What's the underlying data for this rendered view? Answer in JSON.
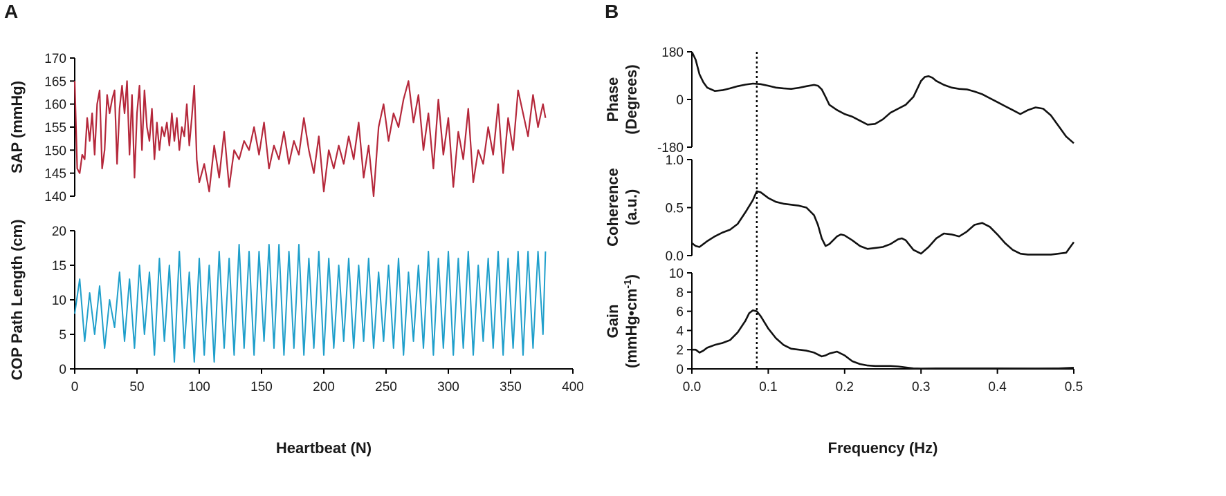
{
  "panels": {
    "a": "A",
    "b": "B"
  },
  "colors": {
    "sap": "#b5283b",
    "cop": "#1f9fcb",
    "spectral": "#111111"
  },
  "chart_data": [
    {
      "id": "sap",
      "type": "line",
      "ylabel": "SAP (mmHg)",
      "ylim": [
        140,
        170
      ],
      "yticks": [
        140,
        145,
        150,
        155,
        160,
        165,
        170
      ],
      "xlim": [
        0,
        400
      ],
      "series": [
        {
          "x": [
            0,
            2,
            4,
            6,
            8,
            10,
            12,
            14,
            16,
            18,
            20,
            22,
            24,
            26,
            28,
            30,
            32,
            34,
            36,
            38,
            40,
            42,
            44,
            46,
            48,
            50,
            52,
            54,
            56,
            58,
            60,
            62,
            64,
            66,
            68,
            70,
            72,
            74,
            76,
            78,
            80,
            82,
            84,
            86,
            88,
            90,
            92,
            94,
            96,
            98,
            100,
            104,
            108,
            112,
            116,
            120,
            124,
            128,
            132,
            136,
            140,
            144,
            148,
            152,
            156,
            160,
            164,
            168,
            172,
            176,
            180,
            184,
            188,
            192,
            196,
            200,
            204,
            208,
            212,
            216,
            220,
            224,
            228,
            232,
            236,
            240,
            244,
            248,
            252,
            256,
            260,
            264,
            268,
            272,
            276,
            280,
            284,
            288,
            292,
            296,
            300,
            304,
            308,
            312,
            316,
            320,
            324,
            328,
            332,
            336,
            340,
            344,
            348,
            352,
            356,
            360,
            364,
            368,
            372,
            376,
            378
          ],
          "y": [
            165,
            146,
            145,
            149,
            148,
            157,
            152,
            158,
            149,
            160,
            163,
            146,
            150,
            162,
            158,
            161,
            163,
            147,
            159,
            164,
            158,
            165,
            149,
            162,
            144,
            158,
            164,
            150,
            163,
            155,
            152,
            159,
            148,
            156,
            150,
            155,
            153,
            156,
            151,
            158,
            152,
            157,
            150,
            155,
            153,
            160,
            151,
            157,
            164,
            148,
            143,
            147,
            141,
            151,
            144,
            154,
            142,
            150,
            148,
            152,
            150,
            155,
            149,
            156,
            146,
            151,
            148,
            154,
            147,
            152,
            149,
            157,
            150,
            145,
            153,
            141,
            150,
            146,
            151,
            147,
            153,
            148,
            156,
            144,
            151,
            140,
            155,
            160,
            152,
            158,
            155,
            161,
            165,
            156,
            162,
            150,
            158,
            146,
            161,
            149,
            157,
            142,
            154,
            148,
            159,
            143,
            150,
            147,
            155,
            149,
            160,
            145,
            157,
            150,
            163,
            158,
            153,
            162,
            155,
            160,
            157
          ]
        }
      ]
    },
    {
      "id": "cop",
      "type": "line",
      "ylabel": "COP Path Length (cm)",
      "xlabel": "Heartbeat (N)",
      "ylim": [
        0,
        20
      ],
      "yticks": [
        0,
        5,
        10,
        15,
        20
      ],
      "xlim": [
        0,
        400
      ],
      "xticks": [
        0,
        50,
        100,
        150,
        200,
        250,
        300,
        350,
        400
      ],
      "series": [
        {
          "x": [
            0,
            4,
            8,
            12,
            16,
            20,
            24,
            28,
            32,
            36,
            40,
            44,
            48,
            52,
            56,
            60,
            64,
            68,
            72,
            76,
            80,
            84,
            88,
            92,
            96,
            100,
            104,
            108,
            112,
            116,
            120,
            124,
            128,
            132,
            136,
            140,
            144,
            148,
            152,
            156,
            160,
            164,
            168,
            172,
            176,
            180,
            184,
            188,
            192,
            196,
            200,
            204,
            208,
            212,
            216,
            220,
            224,
            228,
            232,
            236,
            240,
            244,
            248,
            252,
            256,
            260,
            264,
            268,
            272,
            276,
            280,
            284,
            288,
            292,
            296,
            300,
            304,
            308,
            312,
            316,
            320,
            324,
            328,
            332,
            336,
            340,
            344,
            348,
            352,
            356,
            360,
            364,
            368,
            372,
            376,
            378
          ],
          "y": [
            8,
            13,
            4,
            11,
            5,
            12,
            3,
            10,
            6,
            14,
            4,
            13,
            3,
            15,
            5,
            14,
            2,
            16,
            4,
            15,
            1,
            17,
            3,
            14,
            1,
            16,
            2,
            15,
            1,
            17,
            3,
            16,
            2,
            18,
            3,
            17,
            2,
            17,
            4,
            18,
            3,
            18,
            2,
            17,
            3,
            18,
            2,
            16,
            3,
            17,
            2,
            16,
            3,
            15,
            4,
            16,
            3,
            15,
            4,
            16,
            3,
            14,
            4,
            15,
            3,
            16,
            2,
            14,
            4,
            15,
            3,
            17,
            2,
            16,
            3,
            17,
            2,
            16,
            3,
            17,
            2,
            15,
            4,
            16,
            3,
            17,
            2,
            16,
            3,
            17,
            2,
            17,
            3,
            17,
            5,
            17
          ]
        }
      ]
    },
    {
      "id": "phase",
      "type": "line",
      "ylabel_lines": [
        "Phase",
        "(Degrees)"
      ],
      "ylim": [
        -180,
        180
      ],
      "yticks": [
        -180,
        0,
        180
      ],
      "xlim": [
        0,
        0.5
      ],
      "series": [
        {
          "x": [
            0,
            0.005,
            0.01,
            0.015,
            0.02,
            0.03,
            0.04,
            0.05,
            0.06,
            0.07,
            0.08,
            0.09,
            0.1,
            0.11,
            0.12,
            0.13,
            0.14,
            0.15,
            0.16,
            0.165,
            0.17,
            0.175,
            0.18,
            0.19,
            0.2,
            0.21,
            0.22,
            0.23,
            0.24,
            0.25,
            0.26,
            0.27,
            0.28,
            0.29,
            0.3,
            0.305,
            0.31,
            0.315,
            0.32,
            0.33,
            0.34,
            0.35,
            0.36,
            0.37,
            0.38,
            0.39,
            0.4,
            0.41,
            0.42,
            0.43,
            0.44,
            0.45,
            0.46,
            0.47,
            0.48,
            0.49,
            0.5
          ],
          "y": [
            180,
            150,
            95,
            65,
            45,
            32,
            35,
            42,
            50,
            56,
            60,
            58,
            52,
            45,
            42,
            40,
            44,
            50,
            55,
            52,
            38,
            10,
            -20,
            -40,
            -55,
            -65,
            -80,
            -95,
            -92,
            -75,
            -50,
            -35,
            -20,
            10,
            70,
            85,
            88,
            82,
            70,
            55,
            45,
            40,
            38,
            30,
            20,
            5,
            -10,
            -25,
            -40,
            -55,
            -40,
            -30,
            -35,
            -60,
            -100,
            -140,
            -165
          ]
        }
      ]
    },
    {
      "id": "coherence",
      "type": "line",
      "ylabel_lines": [
        "Coherence",
        "(a.u.)"
      ],
      "ylim": [
        0,
        1
      ],
      "yticks": [
        0,
        0.5,
        1
      ],
      "ytick_labels": [
        "0.0",
        "0.5",
        "1.0"
      ],
      "xlim": [
        0,
        0.5
      ],
      "series": [
        {
          "x": [
            0,
            0.005,
            0.01,
            0.015,
            0.02,
            0.03,
            0.04,
            0.05,
            0.06,
            0.07,
            0.08,
            0.085,
            0.09,
            0.1,
            0.11,
            0.12,
            0.13,
            0.14,
            0.15,
            0.16,
            0.165,
            0.17,
            0.175,
            0.18,
            0.19,
            0.195,
            0.2,
            0.21,
            0.22,
            0.23,
            0.24,
            0.25,
            0.26,
            0.27,
            0.275,
            0.28,
            0.29,
            0.3,
            0.31,
            0.32,
            0.33,
            0.34,
            0.35,
            0.36,
            0.37,
            0.38,
            0.39,
            0.4,
            0.41,
            0.42,
            0.43,
            0.44,
            0.45,
            0.46,
            0.47,
            0.48,
            0.49,
            0.5
          ],
          "y": [
            0.13,
            0.1,
            0.09,
            0.12,
            0.15,
            0.2,
            0.24,
            0.27,
            0.33,
            0.45,
            0.58,
            0.67,
            0.66,
            0.6,
            0.56,
            0.54,
            0.53,
            0.52,
            0.5,
            0.42,
            0.32,
            0.18,
            0.1,
            0.12,
            0.2,
            0.22,
            0.21,
            0.16,
            0.1,
            0.07,
            0.08,
            0.09,
            0.12,
            0.17,
            0.18,
            0.16,
            0.06,
            0.02,
            0.09,
            0.18,
            0.23,
            0.22,
            0.2,
            0.25,
            0.32,
            0.34,
            0.3,
            0.22,
            0.13,
            0.06,
            0.02,
            0.01,
            0.01,
            0.01,
            0.01,
            0.02,
            0.03,
            0.14
          ]
        }
      ]
    },
    {
      "id": "gain",
      "type": "line",
      "ylabel_lines": [
        "Gain",
        "(mmHg•cm",
        "-1",
        ")"
      ],
      "xlabel": "Frequency (Hz)",
      "ylim": [
        0,
        10
      ],
      "yticks": [
        0,
        2,
        4,
        6,
        8,
        10
      ],
      "xlim": [
        0,
        0.5
      ],
      "xticks": [
        0,
        0.1,
        0.2,
        0.3,
        0.4,
        0.5
      ],
      "xtick_labels": [
        "0.0",
        "0.1",
        "0.2",
        "0.3",
        "0.4",
        "0.5"
      ],
      "series": [
        {
          "x": [
            0,
            0.005,
            0.01,
            0.015,
            0.02,
            0.03,
            0.04,
            0.05,
            0.06,
            0.07,
            0.075,
            0.08,
            0.085,
            0.09,
            0.1,
            0.11,
            0.12,
            0.13,
            0.14,
            0.15,
            0.16,
            0.17,
            0.175,
            0.18,
            0.19,
            0.2,
            0.21,
            0.22,
            0.23,
            0.24,
            0.25,
            0.26,
            0.27,
            0.28,
            0.29,
            0.3,
            0.32,
            0.35,
            0.4,
            0.45,
            0.48,
            0.5
          ],
          "y": [
            2,
            2,
            1.7,
            1.9,
            2.2,
            2.5,
            2.7,
            3,
            3.8,
            5,
            5.8,
            6.1,
            6,
            5.5,
            4.2,
            3.2,
            2.5,
            2.1,
            2,
            1.9,
            1.7,
            1.3,
            1.4,
            1.6,
            1.8,
            1.4,
            0.8,
            0.5,
            0.35,
            0.3,
            0.3,
            0.3,
            0.25,
            0.15,
            0.05,
            0.03,
            0.05,
            0.05,
            0.05,
            0.04,
            0.05,
            0.12
          ]
        }
      ]
    }
  ],
  "reference_line_x": 0.085
}
